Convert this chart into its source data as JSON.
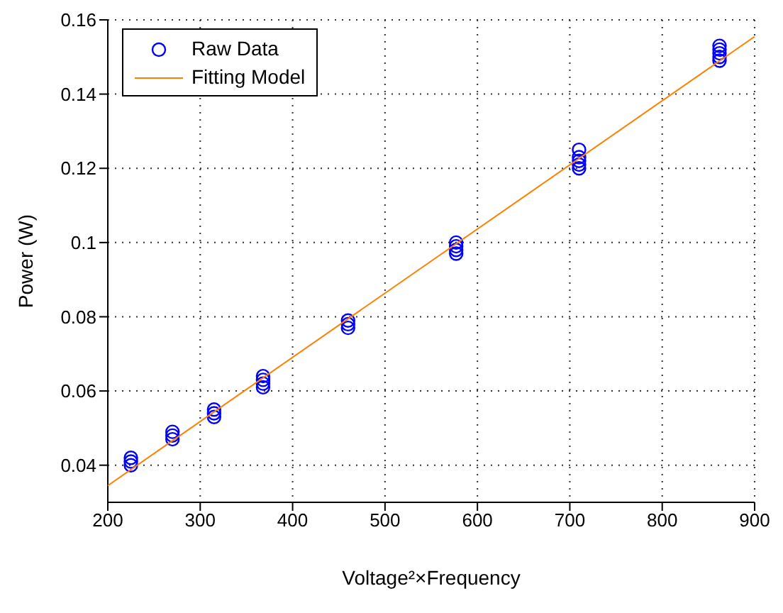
{
  "chart_data": {
    "type": "scatter",
    "xlabel": "Voltage²×Frequency",
    "ylabel": "Power (W)",
    "xlim": [
      200,
      900
    ],
    "xticks": [
      200,
      300,
      400,
      500,
      600,
      700,
      800,
      900
    ],
    "ylim": [
      0.03,
      0.16
    ],
    "yticks": [
      0.04,
      0.06,
      0.08,
      0.1,
      0.12,
      0.14,
      0.16
    ],
    "grid": true,
    "legend": "top left",
    "series": [
      {
        "name": "Raw Data",
        "marker": "circle",
        "color": "#0000ff",
        "x": [
          225,
          225,
          225,
          270,
          270,
          270,
          315,
          315,
          315,
          368,
          368,
          368,
          368,
          460,
          460,
          460,
          577,
          577,
          577,
          577,
          710,
          710,
          710,
          710,
          710,
          862,
          862,
          862,
          862,
          862
        ],
        "values": [
          0.04,
          0.041,
          0.042,
          0.047,
          0.048,
          0.049,
          0.053,
          0.054,
          0.055,
          0.061,
          0.062,
          0.063,
          0.064,
          0.077,
          0.078,
          0.079,
          0.097,
          0.098,
          0.099,
          0.1,
          0.12,
          0.121,
          0.122,
          0.123,
          0.125,
          0.149,
          0.15,
          0.151,
          0.152,
          0.153
        ]
      },
      {
        "name": "Fitting Model",
        "type": "line",
        "marker": "none",
        "color": "#ff8000",
        "x": [
          200,
          900
        ],
        "values": [
          0.0345,
          0.1555
        ]
      }
    ]
  }
}
